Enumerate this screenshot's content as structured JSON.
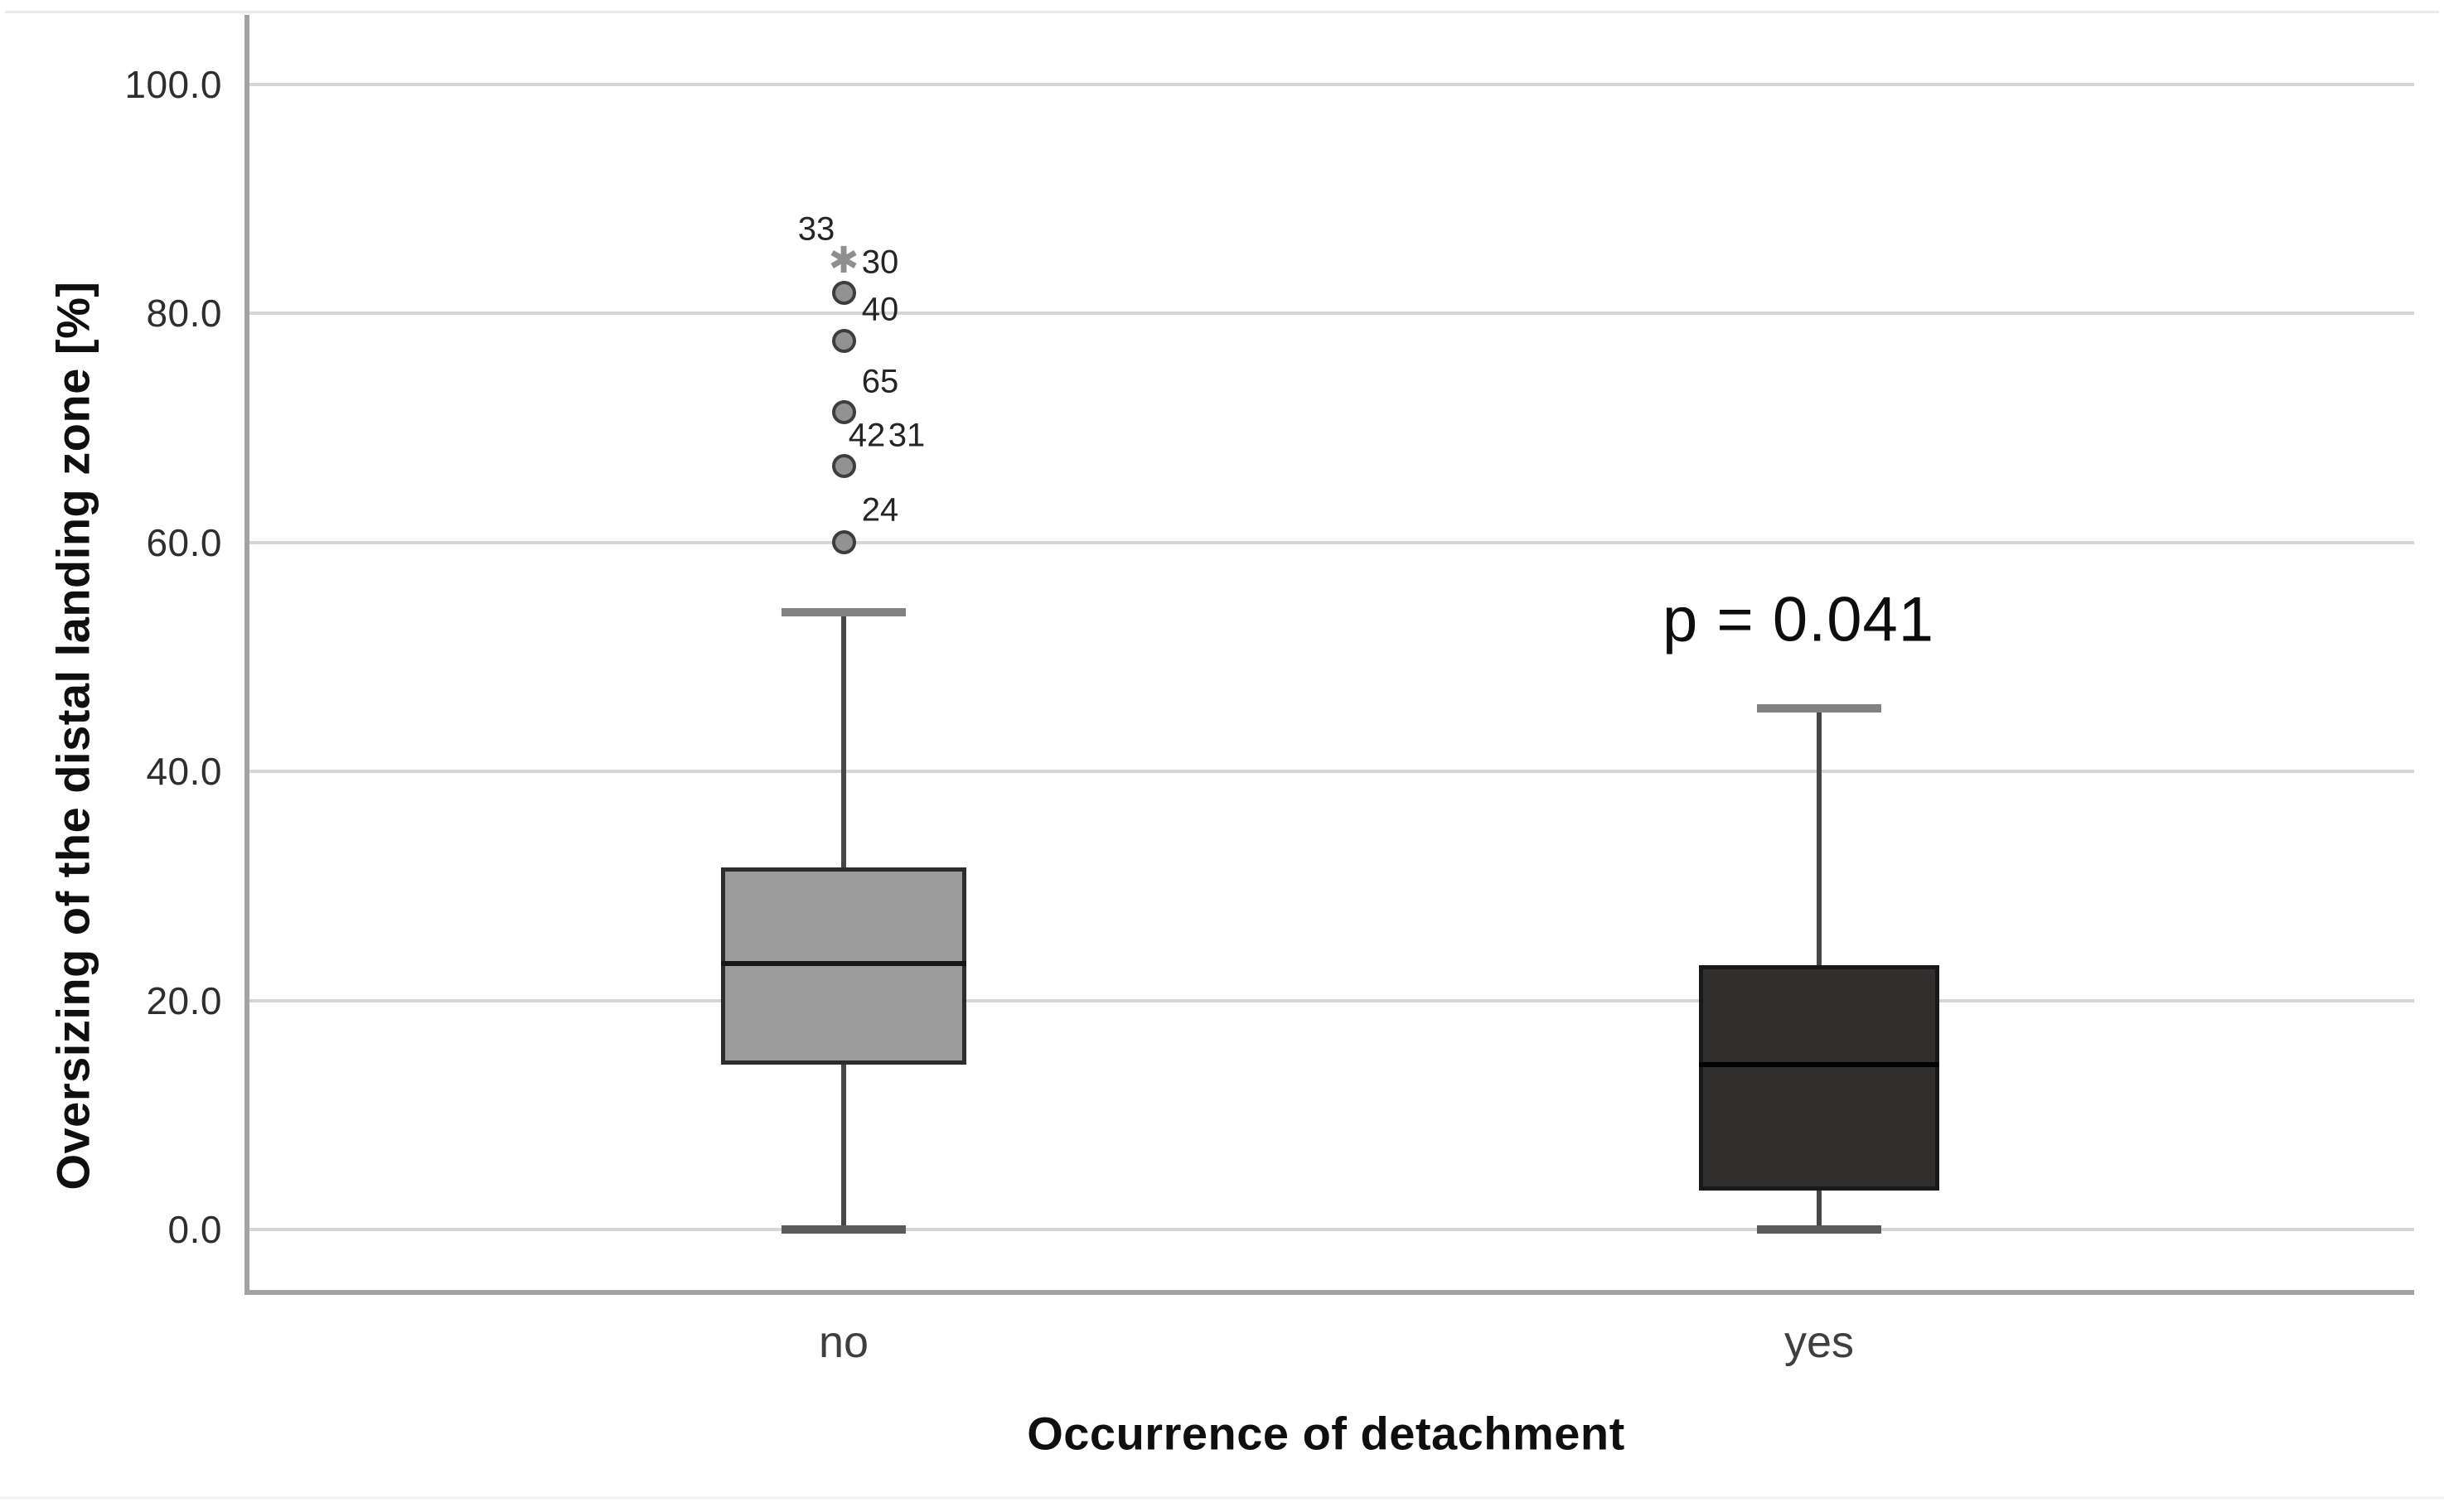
{
  "figure": {
    "background": "#ffffff",
    "grid_color": "#d5d5d3",
    "axis_color": "#a2a2a0"
  },
  "chart_data": {
    "type": "boxplot",
    "title": "",
    "xlabel": "Occurrence of detachment",
    "ylabel": "Oversizing of the distal landing zone [%]",
    "ylim": [
      0,
      100
    ],
    "yticks": [
      0,
      20,
      40,
      60,
      80,
      100
    ],
    "ytick_labels": [
      "0.0",
      "20.0",
      "40.0",
      "60.0",
      "80.0",
      "100.0"
    ],
    "grid": "horizontal",
    "legend": "none",
    "annotation": {
      "text": "p = 0.041",
      "near_category": "yes",
      "approx_y_value": 53.5
    },
    "categories": [
      "no",
      "yes"
    ],
    "series": [
      {
        "category": "no",
        "q1": 14.4,
        "median": 23.2,
        "q3": 31.6,
        "whisker_low": 0.0,
        "whisker_high": 53.9,
        "box_fill": "#9b9b9b",
        "box_border": "#2d2d2d",
        "median_color": "#161616",
        "outliers": [
          {
            "value": 84.6,
            "marker": "star",
            "labels": [
              "33",
              "30"
            ]
          },
          {
            "value": 81.8,
            "marker": "circle",
            "labels": [
              "40"
            ]
          },
          {
            "value": 77.6,
            "marker": "circle",
            "labels": []
          },
          {
            "value": 71.4,
            "marker": "circle",
            "labels": [
              "65"
            ]
          },
          {
            "value": 66.7,
            "marker": "circle",
            "labels": [
              "42",
              "31"
            ]
          },
          {
            "value": 60.0,
            "marker": "circle",
            "labels": [
              "24"
            ]
          }
        ]
      },
      {
        "category": "yes",
        "q1": 3.4,
        "median": 14.4,
        "q3": 23.1,
        "whisker_low": 0.0,
        "whisker_high": 45.5,
        "box_fill": "#312f2e",
        "box_border": "#191919",
        "median_color": "#000000",
        "outliers": []
      }
    ]
  }
}
